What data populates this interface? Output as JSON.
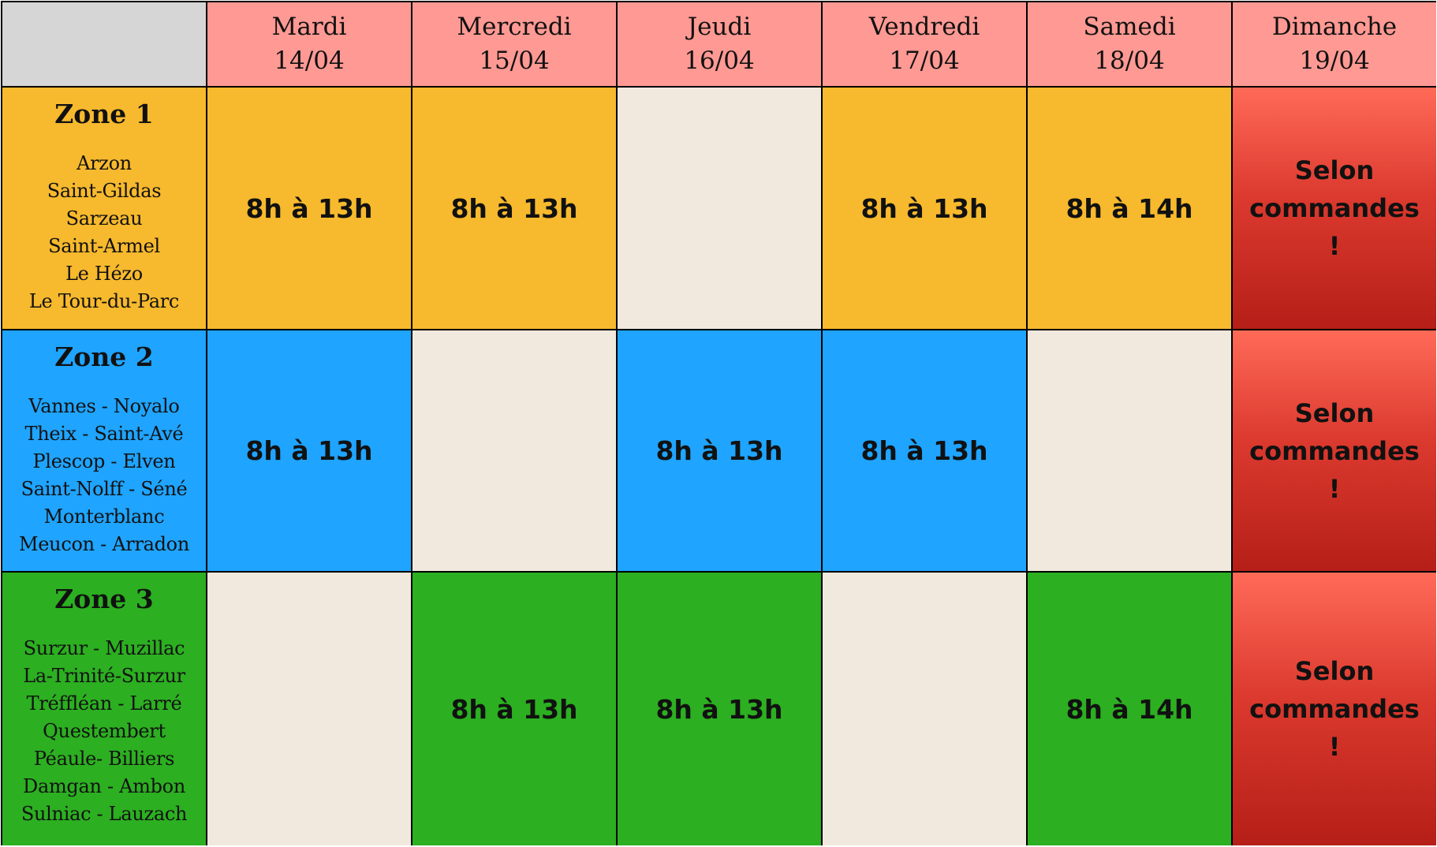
{
  "colors": {
    "header": "#ff9993",
    "corner": "#d6d6d6",
    "zone_1": "#f7b92d",
    "zone_2": "#1fa4ff",
    "zone_3": "#2caf21",
    "empty": "#f1e9dd",
    "sunday_top": "#ff6a57",
    "sunday_bottom": "#b51f17"
  },
  "days": [
    {
      "name": "Mardi",
      "date": "14/04"
    },
    {
      "name": "Mercredi",
      "date": "15/04"
    },
    {
      "name": "Jeudi",
      "date": "16/04"
    },
    {
      "name": "Vendredi",
      "date": "17/04"
    },
    {
      "name": "Samedi",
      "date": "18/04"
    },
    {
      "name": "Dimanche",
      "date": "19/04"
    }
  ],
  "zones": [
    {
      "title": "Zone 1",
      "towns": [
        "Arzon",
        "Saint-Gildas",
        "Sarzeau",
        "Saint-Armel",
        "Le Hézo",
        "Le Tour-du-Parc"
      ],
      "slots": [
        "8h à 13h",
        "8h à 13h",
        "",
        "8h à 13h",
        "8h à 14h",
        "Selon commandes !"
      ]
    },
    {
      "title": "Zone 2",
      "towns": [
        "Vannes - Noyalo",
        "Theix - Saint-Avé",
        "Plescop - Elven",
        "Saint-Nolff - Séné",
        "Monterblanc",
        "Meucon - Arradon"
      ],
      "slots": [
        "8h à 13h",
        "",
        "8h à 13h",
        "8h à 13h",
        "",
        "Selon commandes !"
      ]
    },
    {
      "title": "Zone 3",
      "towns": [
        "Surzur - Muzillac",
        "La-Trinité-Surzur",
        "Tréffléan - Larré",
        "Questembert",
        "Péaule- Billiers",
        "Damgan - Ambon",
        "Sulniac - Lauzach"
      ],
      "slots": [
        "",
        "8h à 13h",
        "8h à 13h",
        "",
        "8h à 14h",
        "Selon commandes !"
      ]
    }
  ]
}
